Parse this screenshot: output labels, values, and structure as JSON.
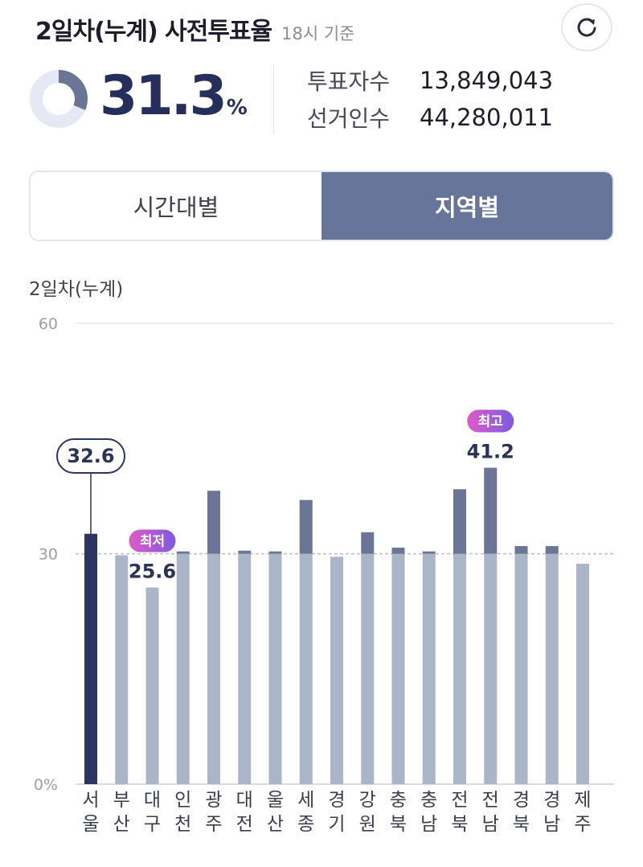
{
  "header": {
    "title": "2일차(누계) 사전투표율",
    "subtitle": "18시 기준",
    "refresh_icon": "refresh-icon"
  },
  "summary": {
    "rate_value": "31.3",
    "rate_unit": "%",
    "rate": 31.3,
    "voters_label": "투표자수",
    "voters_value": "13,849,043",
    "electorate_label": "선거인수",
    "electorate_value": "44,280,011"
  },
  "tabs": [
    {
      "label": "시간대별",
      "active": false
    },
    {
      "label": "지역별",
      "active": true
    }
  ],
  "chart_label": "2일차(누계)",
  "colors": {
    "highlight": "#2b3562",
    "base": "#aab5c8",
    "above": "#6b7697",
    "donut": "#6b7697",
    "donut_track": "#e6e9f4",
    "badge_from": "#e05ac8",
    "badge_to": "#7b5ae0"
  },
  "chart_data": {
    "type": "bar",
    "title": "",
    "xlabel": "",
    "ylabel": "",
    "ylim": [
      0,
      60
    ],
    "y_ticks": [
      {
        "value": 0,
        "label": "0%"
      },
      {
        "value": 30,
        "label": "30"
      },
      {
        "value": 60,
        "label": "60"
      }
    ],
    "reference_value": 30,
    "categories": [
      "서울",
      "부산",
      "대구",
      "인천",
      "광주",
      "대전",
      "울산",
      "세종",
      "경기",
      "강원",
      "충북",
      "충남",
      "전북",
      "전남",
      "경북",
      "경남",
      "제주"
    ],
    "category_lines": [
      [
        "서",
        "울"
      ],
      [
        "부",
        "산"
      ],
      [
        "대",
        "구"
      ],
      [
        "인",
        "천"
      ],
      [
        "광",
        "주"
      ],
      [
        "대",
        "전"
      ],
      [
        "울",
        "산"
      ],
      [
        "세",
        "종"
      ],
      [
        "경",
        "기"
      ],
      [
        "강",
        "원"
      ],
      [
        "충",
        "북"
      ],
      [
        "충",
        "남"
      ],
      [
        "전",
        "북"
      ],
      [
        "전",
        "남"
      ],
      [
        "경",
        "북"
      ],
      [
        "경",
        "남"
      ],
      [
        "제",
        "주"
      ]
    ],
    "values": [
      32.6,
      29.8,
      25.6,
      30.3,
      38.2,
      30.4,
      30.3,
      37.0,
      29.6,
      32.8,
      30.8,
      30.3,
      38.4,
      41.2,
      31.0,
      31.0,
      28.7
    ],
    "selected_index": 0,
    "selected_label": "32.6",
    "annotations": [
      {
        "index": 2,
        "badge": "최저",
        "label": "25.6"
      },
      {
        "index": 13,
        "badge": "최고",
        "label": "41.2"
      }
    ],
    "grid": true
  }
}
